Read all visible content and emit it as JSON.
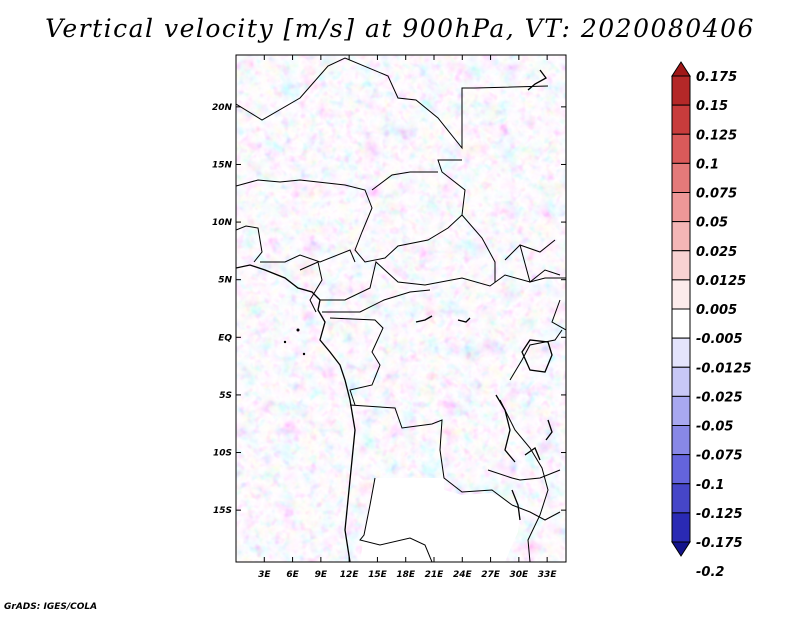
{
  "title": "Vertical velocity [m/s] at 900hPa, VT: 2020080406",
  "footer": "GrADS: IGES/COLA",
  "map": {
    "lat_labels": [
      "20N",
      "15N",
      "10N",
      "5N",
      "EQ",
      "5S",
      "10S",
      "15S"
    ],
    "lon_labels": [
      "3E",
      "6E",
      "9E",
      "12E",
      "15E",
      "18E",
      "21E",
      "24E",
      "27E",
      "30E",
      "33E"
    ],
    "lat_range": [
      -19.5,
      24.5
    ],
    "lon_range": [
      0,
      35
    ]
  },
  "colorbar": {
    "labels": [
      "0.175",
      "0.15",
      "0.125",
      "0.1",
      "0.075",
      "0.05",
      "0.025",
      "0.0125",
      "0.005",
      "-0.005",
      "-0.0125",
      "-0.025",
      "-0.05",
      "-0.075",
      "-0.1",
      "-0.125",
      "-0.175",
      "-0.2"
    ],
    "colors": [
      "#a01818",
      "#b42828",
      "#c83c3c",
      "#da5a5a",
      "#e47a7a",
      "#ee9898",
      "#f4b6b6",
      "#f8d2d2",
      "#fcebeb",
      "#ffffff",
      "#e4e4fc",
      "#c8c8f6",
      "#a8a8f0",
      "#8888e6",
      "#6464dc",
      "#4646c8",
      "#2a2ab4",
      "#14148c"
    ]
  }
}
